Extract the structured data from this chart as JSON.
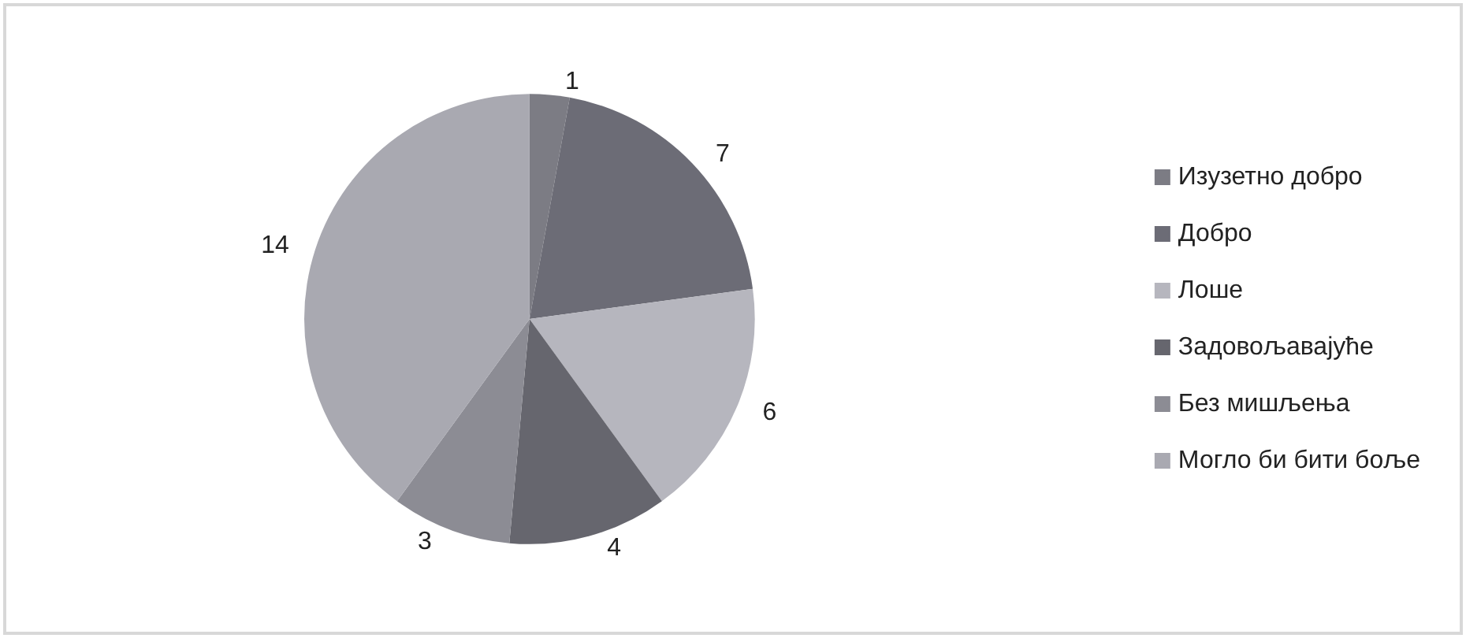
{
  "chart_data": {
    "type": "pie",
    "categories": [
      "Изузетно добро",
      "Добро",
      "Лоше",
      "Задовољавајуће",
      "Без мишљења",
      "Могло би бити боље"
    ],
    "values": [
      1,
      7,
      6,
      4,
      3,
      14
    ],
    "colors": [
      "#7c7c84",
      "#6c6c76",
      "#b6b6be",
      "#66666e",
      "#8c8c94",
      "#a9a9b1"
    ],
    "data_labels": true,
    "legend": "right"
  }
}
